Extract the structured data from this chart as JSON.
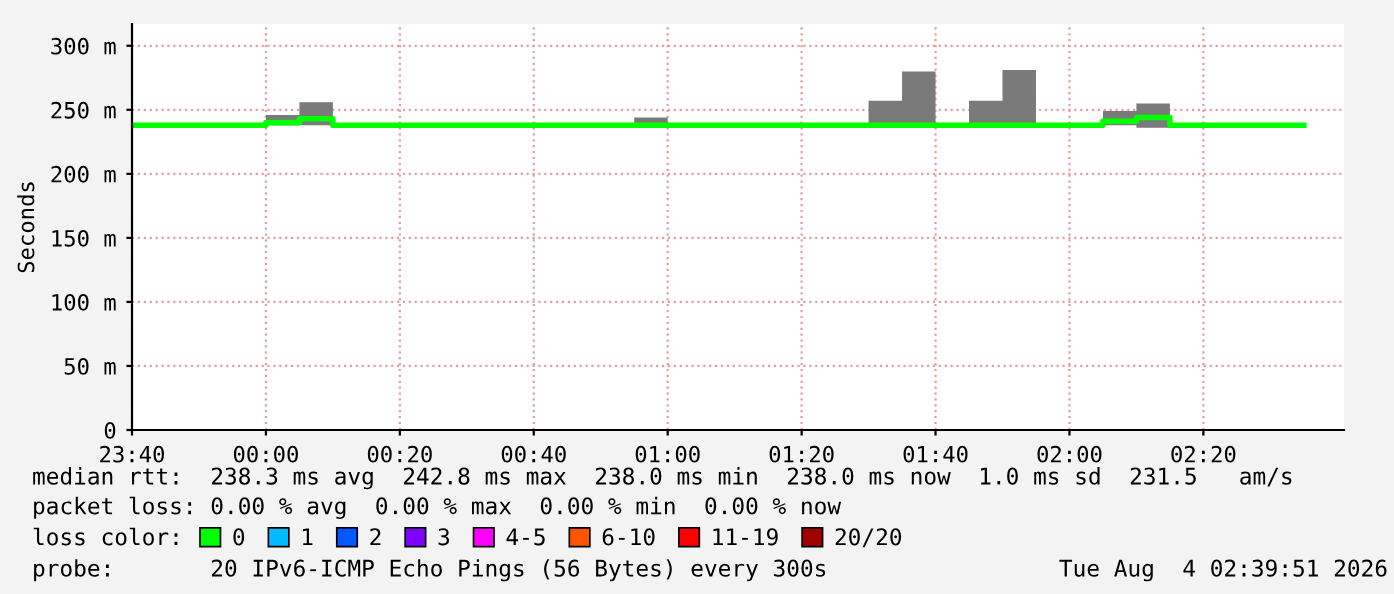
{
  "chart_data": {
    "type": "step",
    "ylabel": "Seconds",
    "xlim": [
      "2026-08-03T23:40",
      "2026-08-04T02:41"
    ],
    "ylim": [
      0,
      317
    ],
    "xticks": [
      {
        "value": "2026-08-03T23:40",
        "label": "23:40"
      },
      {
        "value": "2026-08-04T00:00",
        "label": "00:00"
      },
      {
        "value": "2026-08-04T00:20",
        "label": "00:20"
      },
      {
        "value": "2026-08-04T00:40",
        "label": "00:40"
      },
      {
        "value": "2026-08-04T01:00",
        "label": "01:00"
      },
      {
        "value": "2026-08-04T01:20",
        "label": "01:20"
      },
      {
        "value": "2026-08-04T01:40",
        "label": "01:40"
      },
      {
        "value": "2026-08-04T02:00",
        "label": "02:00"
      },
      {
        "value": "2026-08-04T02:20",
        "label": "02:20"
      }
    ],
    "yticks": [
      {
        "value": 0,
        "label": "0"
      },
      {
        "value": 50,
        "label": "50 m"
      },
      {
        "value": 100,
        "label": "100 m"
      },
      {
        "value": 150,
        "label": "150 m"
      },
      {
        "value": 200,
        "label": "200 m"
      },
      {
        "value": 250,
        "label": "250 m"
      },
      {
        "value": 300,
        "label": "300 m"
      }
    ],
    "grid": true,
    "legend": "bottom",
    "series": [
      {
        "name": "0",
        "lower": [
          238,
          238,
          238,
          238,
          238,
          238,
          238,
          238,
          238,
          238,
          238,
          238,
          238,
          238,
          238,
          238,
          238,
          238,
          238,
          238,
          238,
          238,
          238,
          238,
          238,
          238,
          238,
          238,
          238,
          238,
          236,
          238,
          238,
          238,
          238,
          238
        ],
        "upper": [
          238,
          238,
          238,
          238,
          246,
          256,
          238,
          238,
          238,
          238,
          238,
          238,
          238,
          238,
          238,
          244,
          238,
          238,
          238,
          238,
          238,
          238,
          257,
          280,
          238,
          257,
          281,
          238,
          238,
          249,
          255,
          238,
          238,
          238,
          238,
          238
        ],
        "color": "#00ff00",
        "x": [
          "2026-08-03T23:40",
          "2026-08-03T23:45",
          "2026-08-03T23:50",
          "2026-08-03T23:55",
          "2026-08-04T00:00",
          "2026-08-04T00:05",
          "2026-08-04T00:10",
          "2026-08-04T00:15",
          "2026-08-04T00:20",
          "2026-08-04T00:25",
          "2026-08-04T00:30",
          "2026-08-04T00:35",
          "2026-08-04T00:40",
          "2026-08-04T00:45",
          "2026-08-04T00:50",
          "2026-08-04T00:55",
          "2026-08-04T01:00",
          "2026-08-04T01:05",
          "2026-08-04T01:10",
          "2026-08-04T01:15",
          "2026-08-04T01:20",
          "2026-08-04T01:25",
          "2026-08-04T01:30",
          "2026-08-04T01:35",
          "2026-08-04T01:40",
          "2026-08-04T01:45",
          "2026-08-04T01:50",
          "2026-08-04T01:55",
          "2026-08-04T02:00",
          "2026-08-04T02:05",
          "2026-08-04T02:10",
          "2026-08-04T02:15",
          "2026-08-04T02:20",
          "2026-08-04T02:25",
          "2026-08-04T02:30",
          "2026-08-04T02:35"
        ],
        "values": [
          238,
          238,
          238,
          238,
          240,
          243,
          238,
          238,
          238,
          238,
          238,
          238,
          238,
          238,
          238,
          238,
          238,
          238,
          238,
          238,
          238,
          238,
          238,
          238,
          238,
          238,
          238,
          238,
          238,
          241,
          244,
          238,
          238,
          238,
          238,
          238
        ]
      },
      {
        "name": "1",
        "color": "#00bbff"
      },
      {
        "name": "2",
        "color": "#0059ff"
      },
      {
        "name": "3",
        "color": "#7e00ff"
      },
      {
        "name": "4-5",
        "color": "#ff00ff"
      },
      {
        "name": "6-10",
        "color": "#ff5500"
      },
      {
        "name": "11-19",
        "color": "#ff0000"
      },
      {
        "name": "20/20",
        "color": "#a10000"
      }
    ],
    "annotations": [
      "median rtt:  238.3 ms avg  242.8 ms max  238.0 ms min  238.0 ms now  1.0 ms sd  231.5   am/s",
      "packet loss: 0.00 % avg  0.00 % max  0.00 % min  0.00 % now",
      "loss color:",
      "probe:       20 IPv6-ICMP Echo Pings (56 Bytes) every 300s",
      "Tue Aug  4 02:39:51 2026"
    ]
  }
}
